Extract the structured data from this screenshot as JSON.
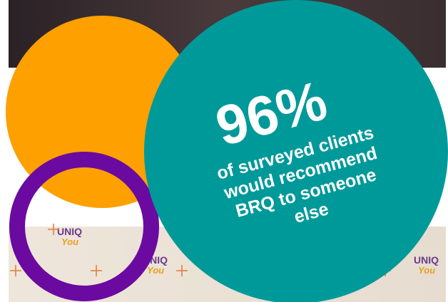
{
  "headline": {
    "stat": "96%",
    "lines": [
      "of surveyed clients",
      "would recommend",
      "BRQ to someone",
      "else"
    ]
  },
  "backdrop": {
    "logo": "UNIQ",
    "script": "You"
  }
}
